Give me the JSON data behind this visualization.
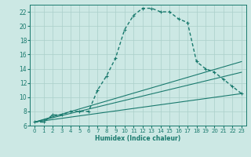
{
  "xlabel": "Humidex (Indice chaleur)",
  "ylabel": "",
  "background_color": "#cce8e4",
  "grid_color": "#aacfca",
  "line_color": "#1a7a6e",
  "xlim": [
    -0.5,
    23.5
  ],
  "ylim": [
    6,
    23
  ],
  "yticks": [
    6,
    8,
    10,
    12,
    14,
    16,
    18,
    20,
    22
  ],
  "xticks": [
    0,
    1,
    2,
    3,
    4,
    5,
    6,
    7,
    8,
    9,
    10,
    11,
    12,
    13,
    14,
    15,
    16,
    17,
    18,
    19,
    20,
    21,
    22,
    23
  ],
  "main_series": {
    "x": [
      0,
      1,
      2,
      3,
      4,
      5,
      6,
      7,
      8,
      9,
      10,
      11,
      12,
      13,
      14,
      15,
      16,
      17,
      18,
      19,
      20,
      21,
      22,
      23
    ],
    "y": [
      6.5,
      6.5,
      7.5,
      7.5,
      8.0,
      8.0,
      8.0,
      11.0,
      13.0,
      15.5,
      19.5,
      21.5,
      22.5,
      22.5,
      22.0,
      22.0,
      21.0,
      20.5,
      15.0,
      14.0,
      13.5,
      12.5,
      11.5,
      10.5
    ]
  },
  "straight_lines": [
    {
      "x": [
        0,
        23
      ],
      "y": [
        6.5,
        15.0
      ]
    },
    {
      "x": [
        0,
        23
      ],
      "y": [
        6.5,
        13.5
      ]
    },
    {
      "x": [
        0,
        23
      ],
      "y": [
        6.5,
        10.5
      ]
    }
  ]
}
